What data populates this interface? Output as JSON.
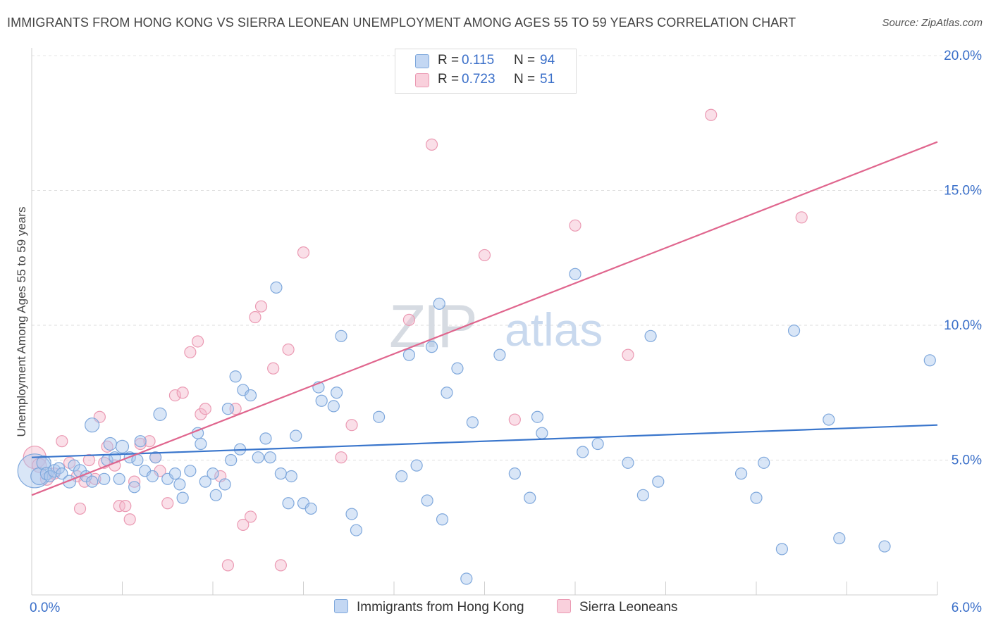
{
  "title": "IMMIGRANTS FROM HONG KONG VS SIERRA LEONEAN UNEMPLOYMENT AMONG AGES 55 TO 59 YEARS CORRELATION CHART",
  "source": "Source: ZipAtlas.com",
  "watermark": {
    "zip": "ZIP",
    "atlas": "atlas"
  },
  "legend": {
    "r_label": "R =",
    "n_label": "N =",
    "items": [
      {
        "r": "0.115",
        "n": "94"
      },
      {
        "r": "0.723",
        "n": "51"
      }
    ]
  },
  "colors": {
    "blue_fill": "#aac8ee",
    "blue_stroke": "#7fa8dc",
    "blue_line": "#3a76cc",
    "pink_fill": "#f5b8cb",
    "pink_stroke": "#eb9ab3",
    "pink_line": "#e0668e",
    "axis_text": "#3a6fc9"
  },
  "chart_data": {
    "type": "scatter",
    "title": "IMMIGRANTS FROM HONG KONG VS SIERRA LEONEAN UNEMPLOYMENT AMONG AGES 55 TO 59 YEARS CORRELATION CHART",
    "xlabel": "",
    "ylabel": "Unemployment Among Ages 55 to 59 years",
    "xlim": [
      0,
      6.0
    ],
    "ylim": [
      0,
      20.0
    ],
    "x_tick_labels": [
      "0.0%",
      "6.0%"
    ],
    "y_ticks": [
      5,
      10,
      15,
      20
    ],
    "y_tick_labels": [
      "5.0%",
      "10.0%",
      "15.0%",
      "20.0%"
    ],
    "grid": true,
    "legend_placement": "top-center",
    "series": [
      {
        "name": "Immigrants from Hong Kong",
        "color": "#aac8ee",
        "trend": [
          [
            0,
            5.1
          ],
          [
            6.0,
            6.3
          ]
        ],
        "points": [
          [
            0.02,
            4.6,
            24
          ],
          [
            0.05,
            4.4,
            12
          ],
          [
            0.08,
            4.9,
            10
          ],
          [
            0.1,
            4.5,
            9
          ],
          [
            0.12,
            4.4,
            8
          ],
          [
            0.15,
            4.6,
            9
          ],
          [
            0.18,
            4.7,
            8
          ],
          [
            0.2,
            4.5,
            8
          ],
          [
            0.25,
            4.2,
            9
          ],
          [
            0.28,
            4.8,
            8
          ],
          [
            0.32,
            4.6,
            9
          ],
          [
            0.36,
            4.4,
            8
          ],
          [
            0.4,
            4.2,
            8
          ],
          [
            0.4,
            6.3,
            10
          ],
          [
            0.48,
            4.3,
            8
          ],
          [
            0.5,
            5.0,
            8
          ],
          [
            0.52,
            5.6,
            9
          ],
          [
            0.55,
            5.1,
            8
          ],
          [
            0.58,
            4.3,
            8
          ],
          [
            0.6,
            5.5,
            9
          ],
          [
            0.65,
            5.1,
            8
          ],
          [
            0.68,
            4.0,
            8
          ],
          [
            0.7,
            5.0,
            8
          ],
          [
            0.72,
            5.7,
            8
          ],
          [
            0.75,
            4.6,
            8
          ],
          [
            0.8,
            4.4,
            8
          ],
          [
            0.82,
            5.1,
            8
          ],
          [
            0.85,
            6.7,
            9
          ],
          [
            0.9,
            4.3,
            8
          ],
          [
            0.95,
            4.5,
            8
          ],
          [
            0.98,
            4.1,
            8
          ],
          [
            1.0,
            3.6,
            8
          ],
          [
            1.05,
            4.6,
            8
          ],
          [
            1.1,
            6.0,
            8
          ],
          [
            1.12,
            5.6,
            8
          ],
          [
            1.15,
            4.2,
            8
          ],
          [
            1.2,
            4.5,
            8
          ],
          [
            1.22,
            3.7,
            8
          ],
          [
            1.28,
            4.1,
            8
          ],
          [
            1.3,
            6.9,
            8
          ],
          [
            1.32,
            5.0,
            8
          ],
          [
            1.35,
            8.1,
            8
          ],
          [
            1.38,
            5.4,
            8
          ],
          [
            1.4,
            7.6,
            8
          ],
          [
            1.45,
            7.4,
            8
          ],
          [
            1.5,
            5.1,
            8
          ],
          [
            1.55,
            5.8,
            8
          ],
          [
            1.58,
            5.1,
            8
          ],
          [
            1.62,
            11.4,
            8
          ],
          [
            1.65,
            4.5,
            8
          ],
          [
            1.7,
            3.4,
            8
          ],
          [
            1.72,
            4.4,
            8
          ],
          [
            1.75,
            5.9,
            8
          ],
          [
            1.8,
            3.4,
            8
          ],
          [
            1.85,
            3.2,
            8
          ],
          [
            1.9,
            7.7,
            8
          ],
          [
            1.92,
            7.2,
            8
          ],
          [
            2.0,
            7.0,
            8
          ],
          [
            2.02,
            7.5,
            8
          ],
          [
            2.05,
            9.6,
            8
          ],
          [
            2.12,
            3.0,
            8
          ],
          [
            2.15,
            2.4,
            8
          ],
          [
            2.3,
            6.6,
            8
          ],
          [
            2.45,
            4.4,
            8
          ],
          [
            2.5,
            8.9,
            8
          ],
          [
            2.55,
            4.8,
            8
          ],
          [
            2.62,
            3.5,
            8
          ],
          [
            2.65,
            9.2,
            8
          ],
          [
            2.7,
            10.8,
            8
          ],
          [
            2.72,
            2.8,
            8
          ],
          [
            2.75,
            7.5,
            8
          ],
          [
            2.82,
            8.4,
            8
          ],
          [
            2.88,
            0.6,
            8
          ],
          [
            2.92,
            6.4,
            8
          ],
          [
            3.1,
            8.9,
            8
          ],
          [
            3.2,
            4.5,
            8
          ],
          [
            3.3,
            3.6,
            8
          ],
          [
            3.35,
            6.6,
            8
          ],
          [
            3.38,
            6.0,
            8
          ],
          [
            3.6,
            11.9,
            8
          ],
          [
            3.65,
            5.3,
            8
          ],
          [
            3.75,
            5.6,
            8
          ],
          [
            3.95,
            4.9,
            8
          ],
          [
            4.05,
            3.7,
            8
          ],
          [
            4.1,
            9.6,
            8
          ],
          [
            4.15,
            4.2,
            8
          ],
          [
            4.7,
            4.5,
            8
          ],
          [
            4.8,
            3.6,
            8
          ],
          [
            4.85,
            4.9,
            8
          ],
          [
            4.97,
            1.7,
            8
          ],
          [
            5.05,
            9.8,
            8
          ],
          [
            5.28,
            6.5,
            8
          ],
          [
            5.35,
            2.1,
            8
          ],
          [
            5.65,
            1.8,
            8
          ],
          [
            5.95,
            8.7,
            8
          ]
        ]
      },
      {
        "name": "Sierra Leoneans",
        "color": "#f5b8cb",
        "trend": [
          [
            0,
            3.7
          ],
          [
            6.0,
            16.8
          ]
        ],
        "points": [
          [
            0.02,
            5.1,
            16
          ],
          [
            0.05,
            4.8,
            10
          ],
          [
            0.1,
            4.3,
            9
          ],
          [
            0.15,
            4.5,
            8
          ],
          [
            0.2,
            5.7,
            8
          ],
          [
            0.25,
            4.9,
            8
          ],
          [
            0.3,
            4.4,
            8
          ],
          [
            0.32,
            3.2,
            8
          ],
          [
            0.35,
            4.2,
            8
          ],
          [
            0.38,
            5.0,
            8
          ],
          [
            0.42,
            4.3,
            8
          ],
          [
            0.45,
            6.6,
            8
          ],
          [
            0.48,
            4.9,
            8
          ],
          [
            0.5,
            5.5,
            8
          ],
          [
            0.55,
            4.8,
            8
          ],
          [
            0.58,
            3.3,
            8
          ],
          [
            0.62,
            3.3,
            8
          ],
          [
            0.65,
            2.8,
            8
          ],
          [
            0.68,
            4.2,
            8
          ],
          [
            0.72,
            5.6,
            8
          ],
          [
            0.78,
            5.7,
            8
          ],
          [
            0.82,
            5.1,
            8
          ],
          [
            0.85,
            4.6,
            8
          ],
          [
            0.9,
            3.4,
            8
          ],
          [
            0.95,
            7.4,
            8
          ],
          [
            1.0,
            7.5,
            8
          ],
          [
            1.05,
            9.0,
            8
          ],
          [
            1.1,
            9.4,
            8
          ],
          [
            1.12,
            6.7,
            8
          ],
          [
            1.15,
            6.9,
            8
          ],
          [
            1.25,
            4.4,
            8
          ],
          [
            1.3,
            1.1,
            8
          ],
          [
            1.35,
            6.9,
            8
          ],
          [
            1.4,
            2.6,
            8
          ],
          [
            1.45,
            2.9,
            8
          ],
          [
            1.48,
            10.3,
            8
          ],
          [
            1.52,
            10.7,
            8
          ],
          [
            1.6,
            8.4,
            8
          ],
          [
            1.65,
            1.1,
            8
          ],
          [
            1.7,
            9.1,
            8
          ],
          [
            1.8,
            12.7,
            8
          ],
          [
            2.05,
            5.1,
            8
          ],
          [
            2.12,
            6.3,
            8
          ],
          [
            2.5,
            10.2,
            8
          ],
          [
            2.65,
            16.7,
            8
          ],
          [
            3.0,
            12.6,
            8
          ],
          [
            3.2,
            6.5,
            8
          ],
          [
            3.6,
            13.7,
            8
          ],
          [
            3.95,
            8.9,
            8
          ],
          [
            4.5,
            17.8,
            8
          ],
          [
            5.1,
            14.0,
            8
          ]
        ]
      }
    ]
  }
}
